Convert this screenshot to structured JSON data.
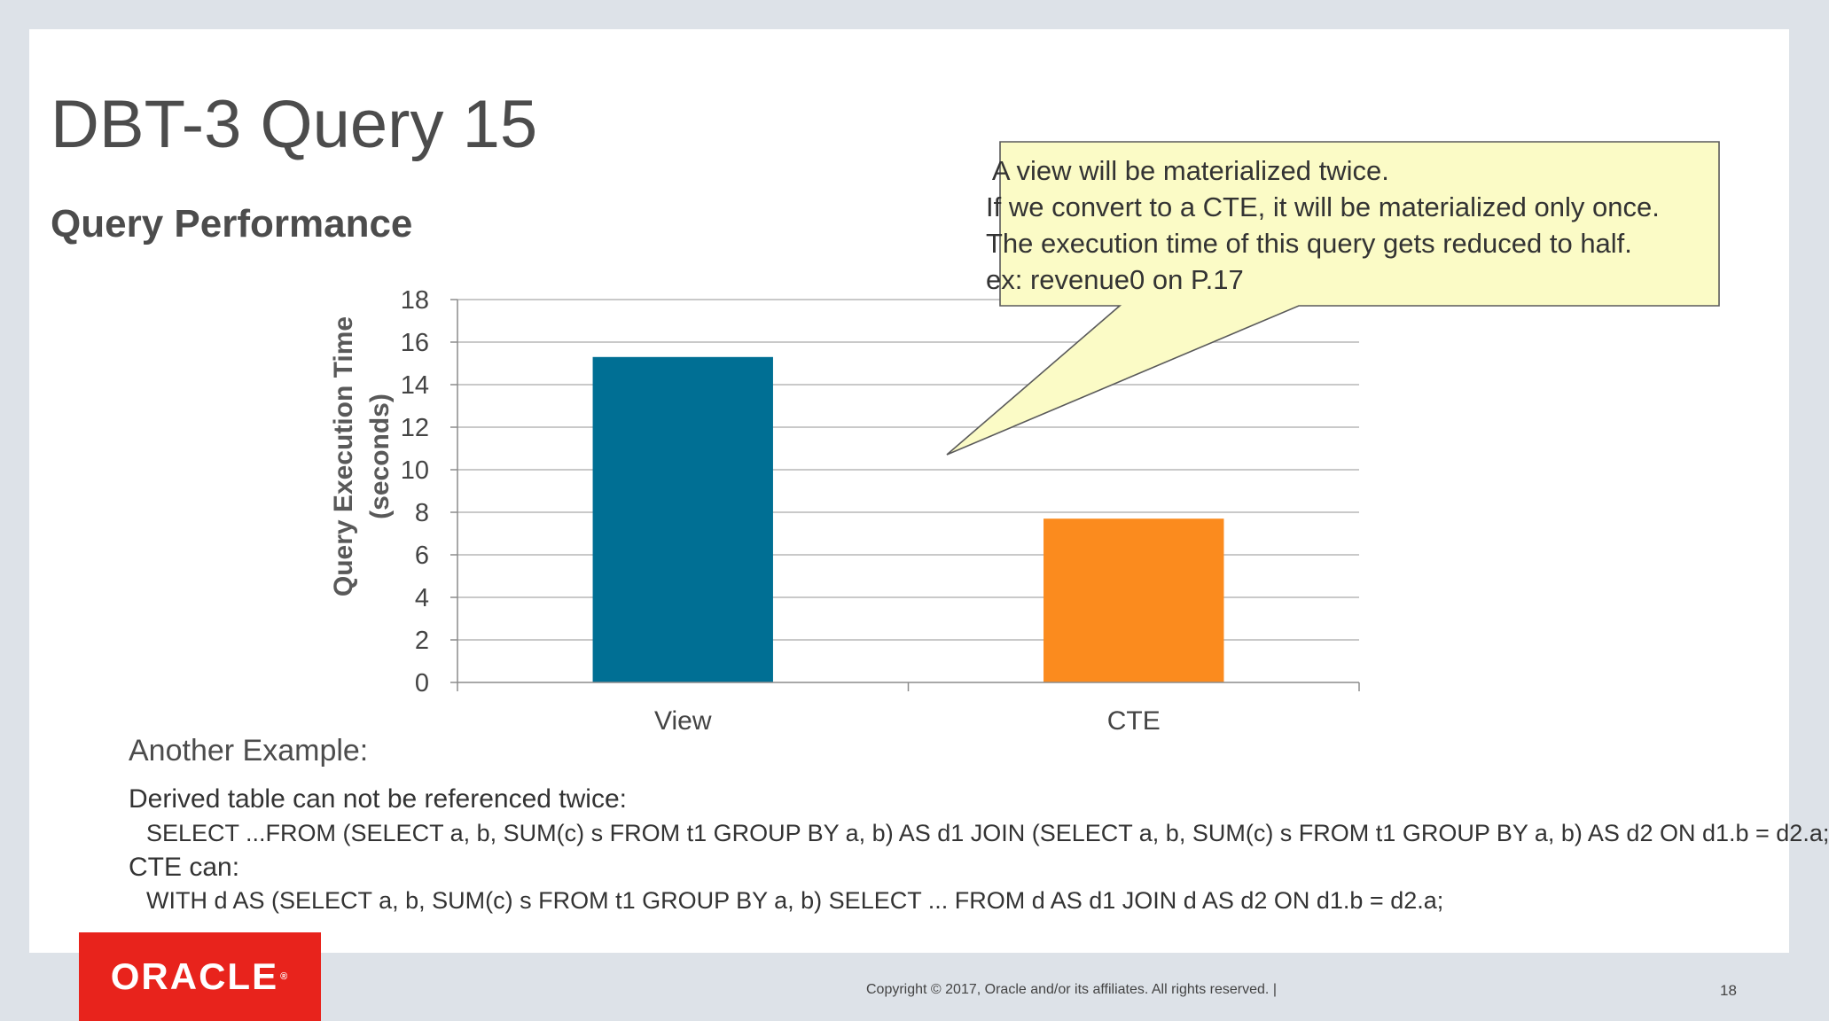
{
  "slide": {
    "title": "DBT-3 Query 15",
    "subtitle": "Query Performance"
  },
  "callout": {
    "text": " A view will be materialized twice.\nIf we convert to a CTE, it will be materialized only once.\nThe execution time of this query gets reduced to half.\nex: revenue0 on P.17"
  },
  "chart_data": {
    "type": "bar",
    "categories": [
      "View",
      "CTE"
    ],
    "values": [
      15.3,
      7.7
    ],
    "colors": [
      "#006f94",
      "#fb8b1e"
    ],
    "ylabel_line1": "Query Execution Time",
    "ylabel_line2": "(seconds)",
    "xlabel": "",
    "ylim": [
      0,
      18
    ],
    "yticks": [
      "0",
      "2",
      "4",
      "6",
      "8",
      "10",
      "12",
      "14",
      "16",
      "18"
    ],
    "grid": true
  },
  "body": {
    "example_heading": "Another Example:",
    "derived_line": "Derived table can not be referenced twice:",
    "derived_sql": "SELECT ...FROM (SELECT a, b, SUM(c) s FROM t1 GROUP BY a, b) AS d1 JOIN (SELECT a, b, SUM(c) s FROM t1 GROUP BY a, b) AS d2 ON d1.b = d2.a;",
    "cte_line": "CTE can:",
    "cte_sql": "WITH d AS (SELECT a, b, SUM(c) s FROM t1 GROUP BY a, b)  SELECT ... FROM d AS d1 JOIN d AS d2 ON d1.b = d2.a;"
  },
  "footer": {
    "logo_text": "ORACLE",
    "logo_mark": "®",
    "copyright": "Copyright © 2017, Oracle and/or its affiliates. All rights reserved.  |",
    "page_number": "18"
  }
}
